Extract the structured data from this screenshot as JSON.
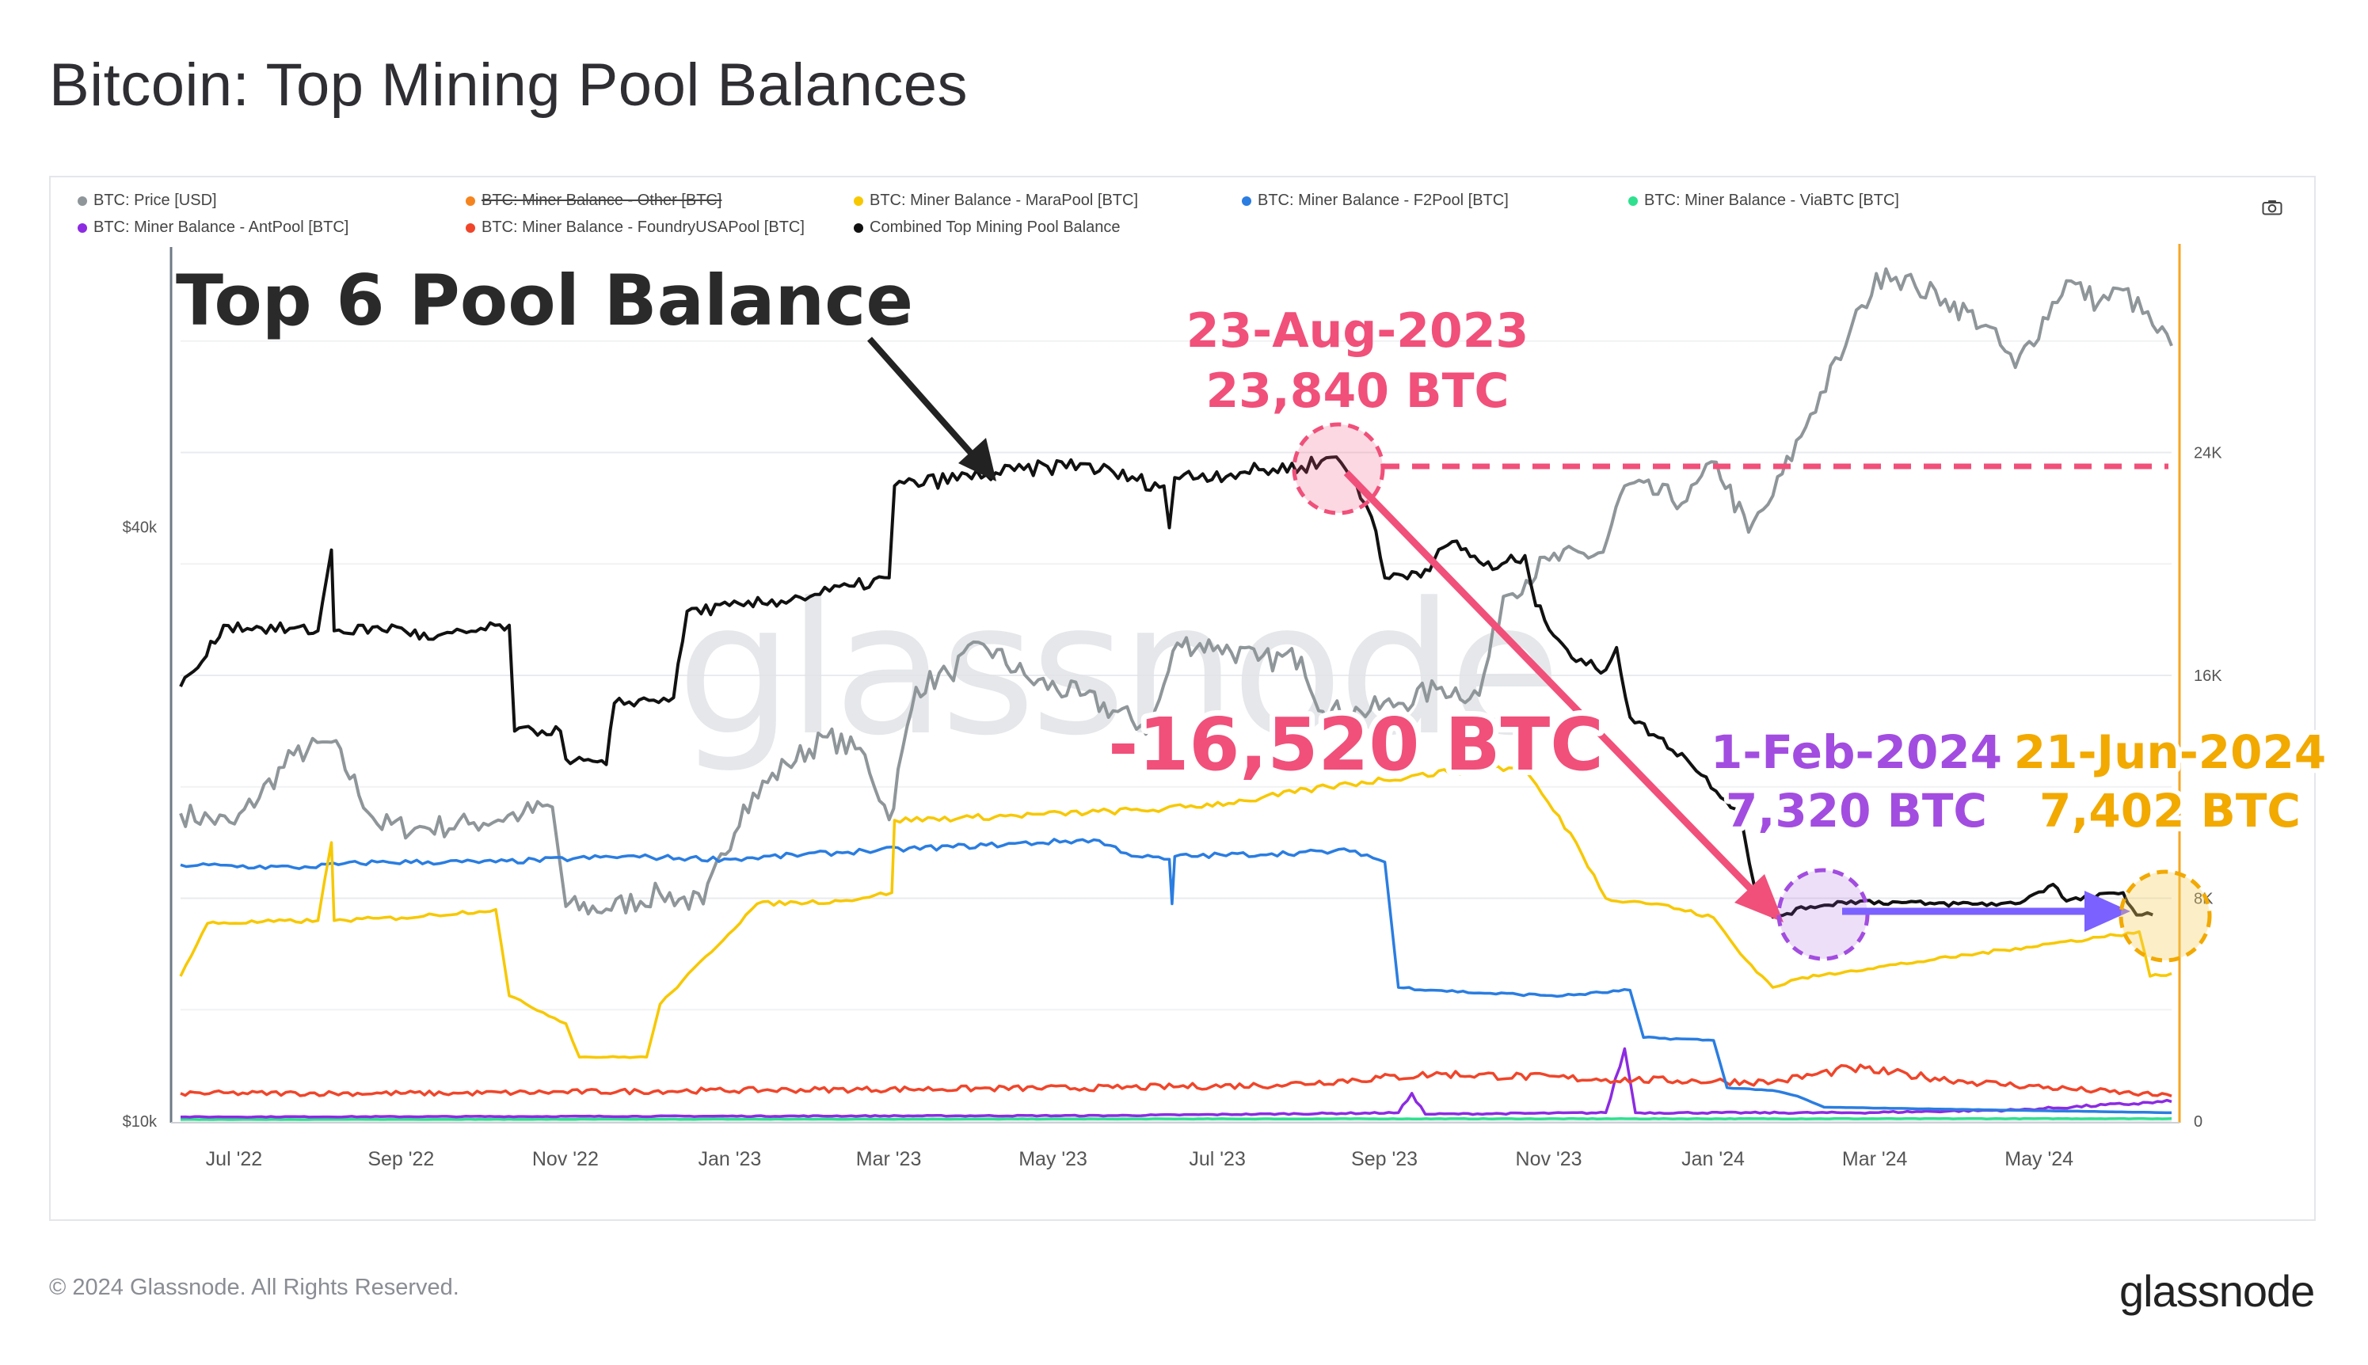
{
  "title": "Bitcoin: Top Mining Pool Balances",
  "copyright": "© 2024 Glassnode. All Rights Reserved.",
  "brand": "glassnode",
  "watermark": "glassnode",
  "camera_icon": "camera-icon",
  "legend": [
    {
      "label": "BTC: Price [USD]",
      "color": "#8f9699",
      "struck": false
    },
    {
      "label": "BTC: Miner Balance - Other [BTC]",
      "color": "#f5841f",
      "struck": true
    },
    {
      "label": "BTC: Miner Balance - MaraPool [BTC]",
      "color": "#f7c800",
      "struck": false
    },
    {
      "label": "BTC: Miner Balance - F2Pool [BTC]",
      "color": "#2a7de1",
      "struck": false
    },
    {
      "label": "BTC: Miner Balance - ViaBTC [BTC]",
      "color": "#2fe08f",
      "struck": false
    },
    {
      "label": "BTC: Miner Balance - AntPool [BTC]",
      "color": "#8c2be2",
      "struck": false
    },
    {
      "label": "BTC: Miner Balance - FoundryUSAPool [BTC]",
      "color": "#f0452a",
      "struck": false
    },
    {
      "label": "Combined Top Mining Pool Balance",
      "color": "#111111",
      "struck": false
    }
  ],
  "annotations": {
    "label_top6": "Top 6 Pool Balance",
    "peak_date": "23-Aug-2023",
    "peak_value": "23,840 BTC",
    "drop": "-16,520 BTC",
    "feb_date": "1-Feb-2024",
    "feb_value": "7,320 BTC",
    "jun_date": "21-Jun-2024",
    "jun_value": "7,402 BTC",
    "colors": {
      "pink": "#f0507a",
      "purple": "#a24de0",
      "arrow_purple": "#7b61ff",
      "orange": "#f2a900"
    }
  },
  "chart_data": {
    "type": "line",
    "x_ticks": [
      "Jul '22",
      "Sep '22",
      "Nov '22",
      "Jan '23",
      "Mar '23",
      "May '23",
      "Jul '23",
      "Sep '23",
      "Nov '23",
      "Jan '24",
      "Mar '24",
      "May '24"
    ],
    "x_range": [
      "2022-06-20",
      "2024-06-28"
    ],
    "y_left": {
      "ticks": [
        "$10k",
        "$40k"
      ],
      "scale": "log",
      "range": [
        10000,
        80000
      ]
    },
    "y_right": {
      "ticks": [
        "0",
        "8K",
        "16K",
        "24K"
      ],
      "range": [
        0,
        32000
      ]
    },
    "series": [
      {
        "name": "BTC: Price [USD]",
        "axis": "left",
        "color": "#8f9699",
        "points": [
          [
            "2022-06-20",
            20500
          ],
          [
            "2022-07-10",
            20000
          ],
          [
            "2022-08-01",
            23500
          ],
          [
            "2022-08-15",
            24200
          ],
          [
            "2022-09-01",
            20000
          ],
          [
            "2022-09-15",
            19800
          ],
          [
            "2022-10-05",
            20000
          ],
          [
            "2022-10-25",
            20500
          ],
          [
            "2022-11-05",
            20800
          ],
          [
            "2022-11-10",
            16500
          ],
          [
            "2022-11-25",
            16400
          ],
          [
            "2022-12-15",
            17000
          ],
          [
            "2022-12-31",
            16600
          ],
          [
            "2023-01-15",
            20900
          ],
          [
            "2023-01-31",
            23000
          ],
          [
            "2023-02-15",
            24500
          ],
          [
            "2023-03-01",
            23500
          ],
          [
            "2023-03-10",
            20200
          ],
          [
            "2023-03-20",
            27500
          ],
          [
            "2023-04-01",
            28400
          ],
          [
            "2023-04-14",
            30400
          ],
          [
            "2023-05-01",
            28000
          ],
          [
            "2023-05-20",
            27000
          ],
          [
            "2023-06-15",
            25000
          ],
          [
            "2023-06-25",
            30500
          ],
          [
            "2023-07-10",
            30300
          ],
          [
            "2023-07-25",
            29300
          ],
          [
            "2023-08-10",
            29500
          ],
          [
            "2023-08-18",
            26000
          ],
          [
            "2023-09-01",
            26000
          ],
          [
            "2023-09-15",
            26500
          ],
          [
            "2023-10-01",
            27500
          ],
          [
            "2023-10-15",
            27000
          ],
          [
            "2023-10-24",
            34000
          ],
          [
            "2023-11-10",
            37000
          ],
          [
            "2023-11-30",
            37700
          ],
          [
            "2023-12-08",
            44000
          ],
          [
            "2023-12-31",
            42500
          ],
          [
            "2024-01-11",
            46500
          ],
          [
            "2024-01-23",
            39500
          ],
          [
            "2024-02-01",
            43000
          ],
          [
            "2024-02-15",
            52000
          ],
          [
            "2024-02-28",
            61000
          ],
          [
            "2024-03-05",
            67000
          ],
          [
            "2024-03-14",
            73000
          ],
          [
            "2024-03-25",
            70000
          ],
          [
            "2024-04-05",
            68000
          ],
          [
            "2024-04-20",
            64000
          ],
          [
            "2024-05-01",
            58000
          ],
          [
            "2024-05-20",
            71000
          ],
          [
            "2024-06-01",
            67500
          ],
          [
            "2024-06-10",
            69500
          ],
          [
            "2024-06-21",
            64000
          ],
          [
            "2024-06-28",
            61000
          ]
        ]
      },
      {
        "name": "Combined Top Mining Pool Balance",
        "axis": "right",
        "color": "#111111",
        "points": [
          [
            "2022-06-20",
            15600
          ],
          [
            "2022-06-28",
            16500
          ],
          [
            "2022-07-06",
            17800
          ],
          [
            "2022-07-20",
            17700
          ],
          [
            "2022-08-10",
            17600
          ],
          [
            "2022-08-15",
            20500
          ],
          [
            "2022-08-16",
            17600
          ],
          [
            "2022-09-10",
            17700
          ],
          [
            "2022-09-20",
            17300
          ],
          [
            "2022-10-20",
            17800
          ],
          [
            "2022-10-22",
            14000
          ],
          [
            "2022-11-08",
            14000
          ],
          [
            "2022-11-10",
            13000
          ],
          [
            "2022-11-25",
            12800
          ],
          [
            "2022-11-28",
            15000
          ],
          [
            "2022-12-20",
            15200
          ],
          [
            "2022-12-25",
            18300
          ],
          [
            "2023-01-15",
            18500
          ],
          [
            "2023-02-05",
            18800
          ],
          [
            "2023-02-25",
            19200
          ],
          [
            "2023-03-10",
            19500
          ],
          [
            "2023-03-12",
            22800
          ],
          [
            "2023-04-15",
            23200
          ],
          [
            "2023-05-20",
            23600
          ],
          [
            "2023-06-10",
            23000
          ],
          [
            "2023-06-20",
            22800
          ],
          [
            "2023-06-22",
            21300
          ],
          [
            "2023-06-24",
            23100
          ],
          [
            "2023-07-20",
            23300
          ],
          [
            "2023-08-10",
            23500
          ],
          [
            "2023-08-23",
            23840
          ],
          [
            "2023-08-30",
            23000
          ],
          [
            "2023-09-05",
            21700
          ],
          [
            "2023-09-10",
            19500
          ],
          [
            "2023-09-25",
            19800
          ],
          [
            "2023-10-05",
            20800
          ],
          [
            "2023-10-20",
            19800
          ],
          [
            "2023-11-01",
            20300
          ],
          [
            "2023-11-05",
            18500
          ],
          [
            "2023-11-20",
            16500
          ],
          [
            "2023-12-01",
            16200
          ],
          [
            "2023-12-05",
            17000
          ],
          [
            "2023-12-10",
            14500
          ],
          [
            "2023-12-31",
            13000
          ],
          [
            "2024-01-20",
            11000
          ],
          [
            "2024-01-25",
            8500
          ],
          [
            "2024-02-01",
            7320
          ],
          [
            "2024-02-15",
            7700
          ],
          [
            "2024-03-01",
            7900
          ],
          [
            "2024-04-01",
            7800
          ],
          [
            "2024-05-01",
            7800
          ],
          [
            "2024-05-15",
            8500
          ],
          [
            "2024-05-20",
            7900
          ],
          [
            "2024-06-10",
            8200
          ],
          [
            "2024-06-15",
            7400
          ],
          [
            "2024-06-21",
            7402
          ]
        ]
      },
      {
        "name": "BTC: Miner Balance - MaraPool [BTC]",
        "axis": "right",
        "color": "#f7c800",
        "points": [
          [
            "2022-06-20",
            5200
          ],
          [
            "2022-06-30",
            7100
          ],
          [
            "2022-08-10",
            7200
          ],
          [
            "2022-08-15",
            10000
          ],
          [
            "2022-08-16",
            7200
          ],
          [
            "2022-09-10",
            7300
          ],
          [
            "2022-10-15",
            7600
          ],
          [
            "2022-10-20",
            4500
          ],
          [
            "2022-11-10",
            3500
          ],
          [
            "2022-11-15",
            2300
          ],
          [
            "2022-12-10",
            2300
          ],
          [
            "2022-12-15",
            4200
          ],
          [
            "2023-01-20",
            7800
          ],
          [
            "2023-02-20",
            7900
          ],
          [
            "2023-03-11",
            8200
          ],
          [
            "2023-03-12",
            10800
          ],
          [
            "2023-04-10",
            10900
          ],
          [
            "2023-06-20",
            11200
          ],
          [
            "2023-07-20",
            11500
          ],
          [
            "2023-08-20",
            12000
          ],
          [
            "2023-09-20",
            12400
          ],
          [
            "2023-10-20",
            12700
          ],
          [
            "2023-11-01",
            12600
          ],
          [
            "2023-11-20",
            10000
          ],
          [
            "2023-12-01",
            8000
          ],
          [
            "2023-12-20",
            7800
          ],
          [
            "2024-01-10",
            7300
          ],
          [
            "2024-01-20",
            6000
          ],
          [
            "2024-02-01",
            4800
          ],
          [
            "2024-02-10",
            5100
          ],
          [
            "2024-03-01",
            5400
          ],
          [
            "2024-04-01",
            5800
          ],
          [
            "2024-05-01",
            6200
          ],
          [
            "2024-06-01",
            6600
          ],
          [
            "2024-06-16",
            6800
          ],
          [
            "2024-06-20",
            5200
          ],
          [
            "2024-06-28",
            5300
          ]
        ]
      },
      {
        "name": "BTC: Miner Balance - F2Pool [BTC]",
        "axis": "right",
        "color": "#2a7de1",
        "points": [
          [
            "2022-06-20",
            9200
          ],
          [
            "2022-08-01",
            9100
          ],
          [
            "2022-09-01",
            9300
          ],
          [
            "2022-10-15",
            9300
          ],
          [
            "2022-12-01",
            9500
          ],
          [
            "2023-01-10",
            9400
          ],
          [
            "2023-03-01",
            9700
          ],
          [
            "2023-04-15",
            9900
          ],
          [
            "2023-05-25",
            10100
          ],
          [
            "2023-06-10",
            9500
          ],
          [
            "2023-06-22",
            9400
          ],
          [
            "2023-06-23",
            7800
          ],
          [
            "2023-06-24",
            9500
          ],
          [
            "2023-07-30",
            9600
          ],
          [
            "2023-08-30",
            9700
          ],
          [
            "2023-09-10",
            9300
          ],
          [
            "2023-09-15",
            4800
          ],
          [
            "2023-10-15",
            4600
          ],
          [
            "2023-11-15",
            4500
          ],
          [
            "2023-12-10",
            4700
          ],
          [
            "2023-12-15",
            3000
          ],
          [
            "2024-01-10",
            2900
          ],
          [
            "2024-01-15",
            1200
          ],
          [
            "2024-02-01",
            1100
          ],
          [
            "2024-02-10",
            900
          ],
          [
            "2024-02-20",
            500
          ],
          [
            "2024-06-28",
            300
          ]
        ]
      },
      {
        "name": "BTC: Miner Balance - FoundryUSAPool [BTC]",
        "axis": "right",
        "color": "#f0452a",
        "points": [
          [
            "2022-06-20",
            1000
          ],
          [
            "2022-10-01",
            1000
          ],
          [
            "2023-01-01",
            1100
          ],
          [
            "2023-06-01",
            1200
          ],
          [
            "2023-08-01",
            1300
          ],
          [
            "2023-10-01",
            1700
          ],
          [
            "2023-12-01",
            1500
          ],
          [
            "2024-02-01",
            1400
          ],
          [
            "2024-03-01",
            1900
          ],
          [
            "2024-04-15",
            1400
          ],
          [
            "2024-06-28",
            900
          ]
        ]
      },
      {
        "name": "BTC: Miner Balance - AntPool [BTC]",
        "axis": "right",
        "color": "#8c2be2",
        "points": [
          [
            "2022-06-20",
            150
          ],
          [
            "2023-06-01",
            200
          ],
          [
            "2023-09-15",
            300
          ],
          [
            "2023-09-20",
            1000
          ],
          [
            "2023-09-25",
            250
          ],
          [
            "2023-12-01",
            300
          ],
          [
            "2023-12-08",
            2600
          ],
          [
            "2023-12-12",
            300
          ],
          [
            "2024-03-01",
            300
          ],
          [
            "2024-05-01",
            400
          ],
          [
            "2024-06-28",
            700
          ]
        ]
      },
      {
        "name": "BTC: Miner Balance - ViaBTC [BTC]",
        "axis": "right",
        "color": "#2fe08f",
        "points": [
          [
            "2022-06-20",
            60
          ],
          [
            "2023-06-01",
            80
          ],
          [
            "2024-06-28",
            90
          ]
        ]
      }
    ]
  }
}
